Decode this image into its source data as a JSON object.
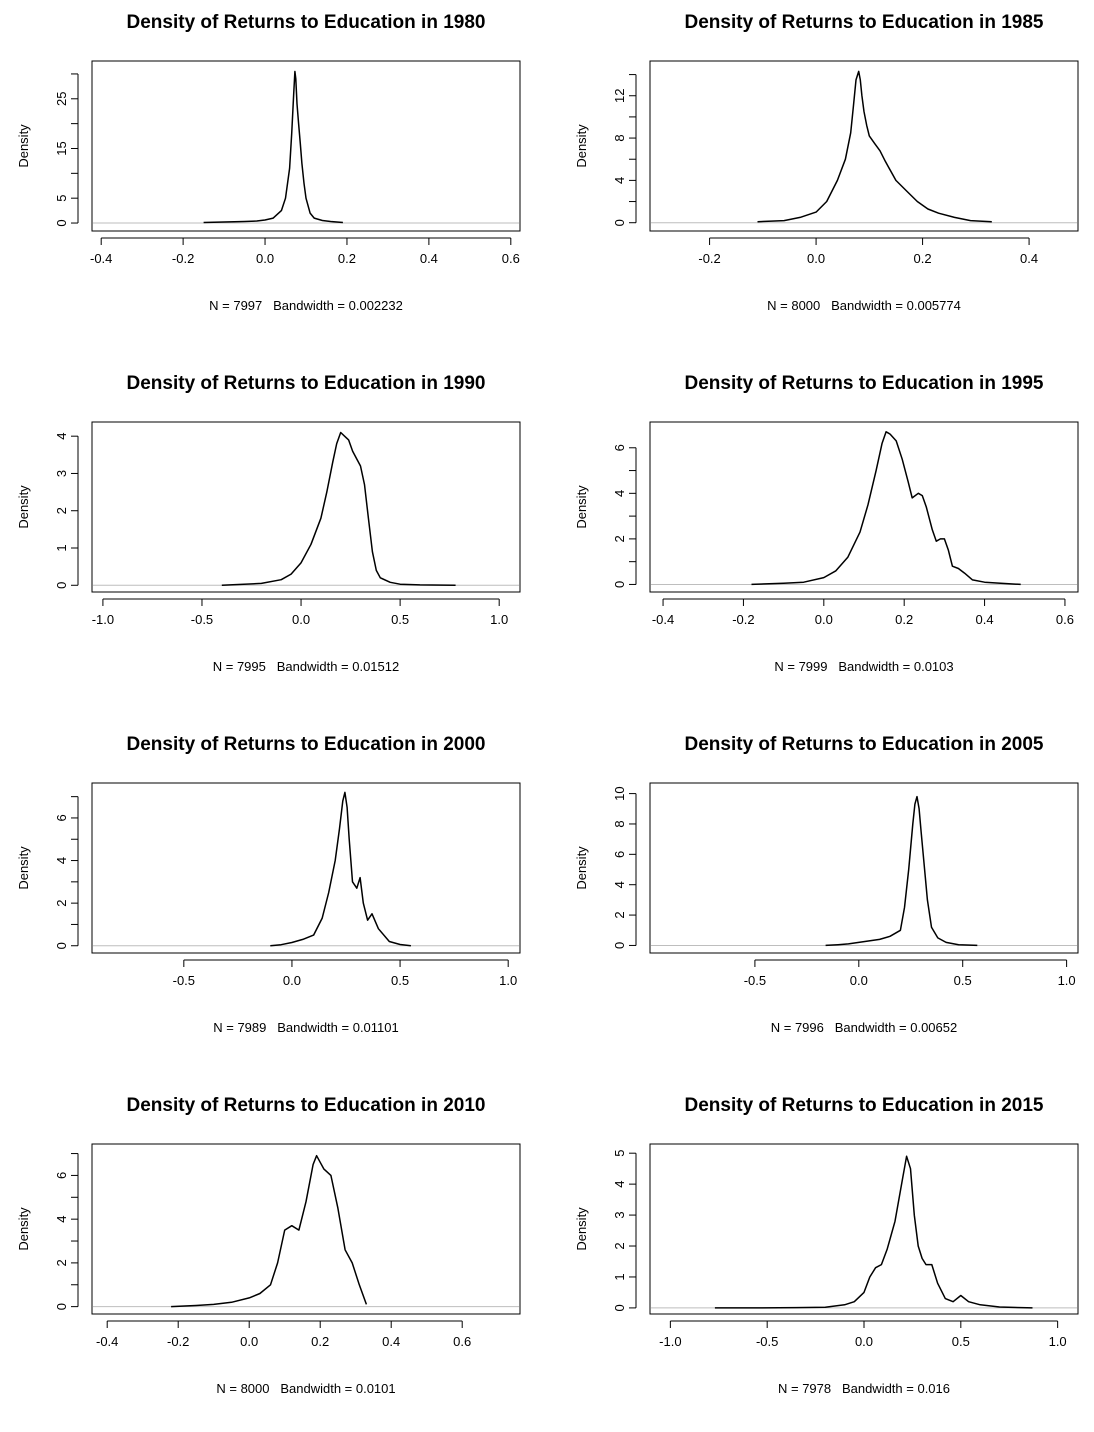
{
  "chart_data": [
    {
      "type": "line",
      "title": "Density of Returns to Education in 1980",
      "ylabel": "Density",
      "xlabel": "N = 7997   Bandwidth = 0.002232",
      "xlim": [
        -0.42,
        0.62
      ],
      "ylim": [
        -1,
        32
      ],
      "xticks": [
        -0.4,
        -0.2,
        0.0,
        0.2,
        0.4,
        0.6
      ],
      "xtick_labels": [
        "-0.4",
        "-0.2",
        "0.0",
        "0.2",
        "0.4",
        "0.6"
      ],
      "yticks": [
        0,
        5,
        10,
        15,
        20,
        25,
        30
      ],
      "ytick_labels": [
        "0",
        "5",
        "",
        "15",
        "",
        "25",
        ""
      ],
      "baseline": true,
      "grid": false,
      "series": [
        {
          "x": [
            -0.15,
            -0.1,
            -0.05,
            -0.02,
            0.0,
            0.02,
            0.04,
            0.05,
            0.06,
            0.065,
            0.07,
            0.073,
            0.075,
            0.078,
            0.082,
            0.086,
            0.09,
            0.095,
            0.1,
            0.11,
            0.12,
            0.14,
            0.16,
            0.19
          ],
          "y": [
            0.1,
            0.2,
            0.3,
            0.4,
            0.6,
            1.0,
            2.5,
            5.0,
            11.0,
            18.0,
            26.0,
            30.5,
            29.0,
            24.0,
            20.0,
            16.0,
            12.0,
            8.0,
            5.0,
            2.0,
            1.0,
            0.5,
            0.3,
            0.1
          ]
        }
      ]
    },
    {
      "type": "line",
      "title": "Density of Returns to Education in 1985",
      "ylabel": "Density",
      "xlabel": "N = 8000   Bandwidth = 0.005774",
      "xlim": [
        -0.31,
        0.49
      ],
      "ylim": [
        -0.5,
        15
      ],
      "xticks": [
        -0.2,
        0.0,
        0.2,
        0.4
      ],
      "xtick_labels": [
        "-0.2",
        "0.0",
        "0.2",
        "0.4"
      ],
      "yticks": [
        0,
        2,
        4,
        6,
        8,
        10,
        12,
        14
      ],
      "ytick_labels": [
        "0",
        "",
        "4",
        "",
        "8",
        "",
        "12",
        ""
      ],
      "baseline": true,
      "grid": false,
      "series": [
        {
          "x": [
            -0.11,
            -0.06,
            -0.03,
            0.0,
            0.02,
            0.04,
            0.055,
            0.065,
            0.07,
            0.075,
            0.08,
            0.083,
            0.086,
            0.09,
            0.095,
            0.1,
            0.11,
            0.12,
            0.13,
            0.15,
            0.17,
            0.19,
            0.21,
            0.23,
            0.26,
            0.29,
            0.33
          ],
          "y": [
            0.1,
            0.2,
            0.5,
            1.0,
            2.0,
            4.0,
            6.0,
            8.5,
            11.0,
            13.5,
            14.3,
            13.5,
            12.0,
            10.5,
            9.2,
            8.2,
            7.5,
            6.8,
            5.8,
            4.0,
            3.0,
            2.0,
            1.3,
            0.9,
            0.5,
            0.2,
            0.1
          ]
        }
      ]
    },
    {
      "type": "line",
      "title": "Density of Returns to Education in 1990",
      "ylabel": "Density",
      "xlabel": "N = 7995   Bandwidth = 0.01512",
      "xlim": [
        -1.05,
        1.1
      ],
      "ylim": [
        -0.1,
        4.3
      ],
      "xticks": [
        -1.0,
        -0.5,
        0.0,
        0.5,
        1.0
      ],
      "xtick_labels": [
        "-1.0",
        "-0.5",
        "0.0",
        "0.5",
        "1.0"
      ],
      "yticks": [
        0,
        1,
        2,
        3,
        4
      ],
      "ytick_labels": [
        "0",
        "1",
        "2",
        "3",
        "4"
      ],
      "baseline": true,
      "grid": false,
      "series": [
        {
          "x": [
            -0.4,
            -0.2,
            -0.1,
            -0.05,
            0.0,
            0.05,
            0.1,
            0.13,
            0.16,
            0.18,
            0.2,
            0.22,
            0.24,
            0.26,
            0.28,
            0.3,
            0.32,
            0.34,
            0.36,
            0.38,
            0.4,
            0.45,
            0.5,
            0.6,
            0.78
          ],
          "y": [
            0.0,
            0.05,
            0.15,
            0.3,
            0.6,
            1.1,
            1.8,
            2.5,
            3.3,
            3.8,
            4.1,
            4.0,
            3.9,
            3.6,
            3.4,
            3.2,
            2.7,
            1.8,
            0.9,
            0.4,
            0.2,
            0.08,
            0.03,
            0.01,
            0.0
          ]
        }
      ]
    },
    {
      "type": "line",
      "title": "Density of Returns to Education in 1995",
      "ylabel": "Density",
      "xlabel": "N = 7999   Bandwidth = 0.0103",
      "xlim": [
        -0.43,
        0.63
      ],
      "ylim": [
        -0.2,
        7.0
      ],
      "xticks": [
        -0.4,
        -0.2,
        0.0,
        0.2,
        0.4,
        0.6
      ],
      "xtick_labels": [
        "-0.4",
        "-0.2",
        "0.0",
        "0.2",
        "0.4",
        "0.6"
      ],
      "yticks": [
        0,
        1,
        2,
        3,
        4,
        5,
        6
      ],
      "ytick_labels": [
        "0",
        "",
        "2",
        "",
        "4",
        "",
        "6"
      ],
      "baseline": true,
      "grid": false,
      "series": [
        {
          "x": [
            -0.18,
            -0.1,
            -0.05,
            0.0,
            0.03,
            0.06,
            0.09,
            0.11,
            0.13,
            0.145,
            0.155,
            0.165,
            0.18,
            0.195,
            0.21,
            0.22,
            0.235,
            0.245,
            0.255,
            0.27,
            0.28,
            0.29,
            0.3,
            0.31,
            0.32,
            0.335,
            0.35,
            0.37,
            0.4,
            0.44,
            0.49
          ],
          "y": [
            0.0,
            0.05,
            0.1,
            0.3,
            0.6,
            1.2,
            2.3,
            3.5,
            5.0,
            6.2,
            6.7,
            6.6,
            6.3,
            5.5,
            4.5,
            3.8,
            4.0,
            3.9,
            3.4,
            2.4,
            1.9,
            2.0,
            2.0,
            1.5,
            0.8,
            0.7,
            0.5,
            0.2,
            0.1,
            0.05,
            0.0
          ]
        }
      ]
    },
    {
      "type": "line",
      "title": "Density of Returns to Education in 2000",
      "ylabel": "Density",
      "xlabel": "N = 7989   Bandwidth = 0.01101",
      "xlim": [
        -0.92,
        1.05
      ],
      "ylim": [
        -0.2,
        7.5
      ],
      "xticks": [
        -0.5,
        0.0,
        0.5,
        1.0
      ],
      "xtick_labels": [
        "-0.5",
        "0.0",
        "0.5",
        "1.0"
      ],
      "yticks": [
        0,
        1,
        2,
        3,
        4,
        5,
        6,
        7
      ],
      "ytick_labels": [
        "0",
        "",
        "2",
        "",
        "4",
        "",
        "6",
        ""
      ],
      "baseline": true,
      "grid": false,
      "series": [
        {
          "x": [
            -0.1,
            -0.05,
            0.0,
            0.05,
            0.1,
            0.14,
            0.17,
            0.2,
            0.22,
            0.235,
            0.245,
            0.255,
            0.265,
            0.28,
            0.3,
            0.315,
            0.33,
            0.35,
            0.37,
            0.4,
            0.45,
            0.5,
            0.55
          ],
          "y": [
            0.0,
            0.05,
            0.15,
            0.3,
            0.5,
            1.3,
            2.5,
            4.0,
            5.5,
            6.8,
            7.2,
            6.5,
            5.0,
            3.0,
            2.7,
            3.2,
            2.0,
            1.2,
            1.5,
            0.8,
            0.2,
            0.06,
            0.0
          ]
        }
      ]
    },
    {
      "type": "line",
      "title": "Density of Returns to Education in 2005",
      "ylabel": "Density",
      "xlabel": "N = 7996   Bandwidth = 0.00652",
      "xlim": [
        -1.0,
        1.05
      ],
      "ylim": [
        -0.3,
        10.5
      ],
      "xticks": [
        -0.5,
        0.0,
        0.5,
        1.0
      ],
      "xtick_labels": [
        "-0.5",
        "0.0",
        "0.5",
        "1.0"
      ],
      "yticks": [
        0,
        2,
        4,
        6,
        8,
        10
      ],
      "ytick_labels": [
        "0",
        "2",
        "4",
        "6",
        "8",
        "10"
      ],
      "baseline": true,
      "grid": false,
      "series": [
        {
          "x": [
            -0.16,
            -0.1,
            -0.05,
            0.0,
            0.05,
            0.1,
            0.15,
            0.2,
            0.22,
            0.24,
            0.26,
            0.27,
            0.28,
            0.29,
            0.3,
            0.31,
            0.32,
            0.33,
            0.35,
            0.38,
            0.42,
            0.48,
            0.57
          ],
          "y": [
            0.0,
            0.05,
            0.1,
            0.2,
            0.3,
            0.4,
            0.6,
            1.0,
            2.5,
            5.0,
            8.0,
            9.3,
            9.8,
            9.0,
            7.5,
            6.0,
            4.5,
            3.0,
            1.2,
            0.5,
            0.2,
            0.05,
            0.0
          ]
        }
      ]
    },
    {
      "type": "line",
      "title": "Density of Returns to Education in 2010",
      "ylabel": "Density",
      "xlabel": "N = 8000   Bandwidth = 0.0101",
      "xlim": [
        -0.44,
        0.76
      ],
      "ylim": [
        -0.2,
        7.3
      ],
      "xticks": [
        -0.4,
        -0.2,
        0.0,
        0.2,
        0.4,
        0.6
      ],
      "xtick_labels": [
        "-0.4",
        "-0.2",
        "0.0",
        "0.2",
        "0.4",
        "0.6"
      ],
      "yticks": [
        0,
        1,
        2,
        3,
        4,
        5,
        6,
        7
      ],
      "ytick_labels": [
        "0",
        "",
        "2",
        "",
        "4",
        "",
        "6",
        ""
      ],
      "baseline": true,
      "grid": false,
      "series": [
        {
          "x": [
            -0.22,
            -0.15,
            -0.1,
            -0.05,
            0.0,
            0.03,
            0.06,
            0.08,
            0.1,
            0.12,
            0.14,
            0.16,
            0.18,
            0.19,
            0.2,
            0.21,
            0.23,
            0.25,
            0.27,
            0.29,
            0.31,
            0.33
          ],
          "y": [
            0.0,
            0.05,
            0.1,
            0.2,
            0.4,
            0.6,
            1.0,
            2.0,
            3.5,
            3.7,
            3.5,
            4.8,
            6.5,
            6.9,
            6.6,
            6.3,
            6.0,
            4.5,
            2.6,
            2.0,
            1.0,
            0.1
          ]
        }
      ]
    },
    {
      "type": "line",
      "title": "Density of Returns to Education in 2015",
      "ylabel": "Density",
      "xlabel": "N = 7978   Bandwidth = 0.016",
      "xlim": [
        -1.1,
        1.1
      ],
      "ylim": [
        -0.1,
        5.2
      ],
      "xticks": [
        -1.0,
        -0.5,
        0.0,
        0.5,
        1.0
      ],
      "xtick_labels": [
        "-1.0",
        "-0.5",
        "0.0",
        "0.5",
        "1.0"
      ],
      "yticks": [
        0,
        1,
        2,
        3,
        4,
        5
      ],
      "ytick_labels": [
        "0",
        "1",
        "2",
        "3",
        "4",
        "5"
      ],
      "baseline": true,
      "grid": false,
      "series": [
        {
          "x": [
            -0.77,
            -0.55,
            -0.35,
            -0.2,
            -0.1,
            -0.05,
            0.0,
            0.03,
            0.06,
            0.09,
            0.12,
            0.16,
            0.2,
            0.22,
            0.24,
            0.26,
            0.28,
            0.3,
            0.32,
            0.35,
            0.38,
            0.42,
            0.46,
            0.5,
            0.54,
            0.6,
            0.7,
            0.87
          ],
          "y": [
            0.0,
            0.0,
            0.01,
            0.02,
            0.1,
            0.2,
            0.5,
            1.0,
            1.3,
            1.4,
            1.9,
            2.8,
            4.2,
            4.9,
            4.5,
            3.0,
            2.0,
            1.6,
            1.4,
            1.4,
            0.8,
            0.3,
            0.2,
            0.4,
            0.2,
            0.1,
            0.03,
            0.0
          ]
        }
      ]
    }
  ]
}
